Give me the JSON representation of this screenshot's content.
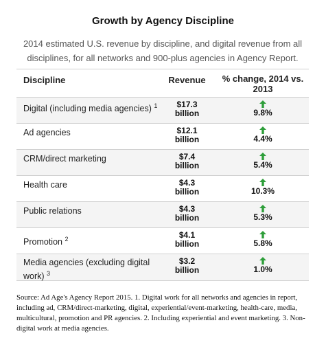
{
  "title": "Growth by Agency Discipline",
  "subtitle": "2014 estimated U.S. revenue by discipline, and digital revenue from all disciplines, for all networks and 900-plus agencies in Agency Report.",
  "columns": {
    "discipline": "Discipline",
    "revenue": "Revenue",
    "change": "% change, 2014 vs. 2013"
  },
  "rows": [
    {
      "discipline": "Digital (including media agencies)",
      "footnote": "1",
      "revenue_value": "$17.3",
      "revenue_unit": "billion",
      "change": "9.8%",
      "direction": "up"
    },
    {
      "discipline": "Ad agencies",
      "footnote": "",
      "revenue_value": "$12.1",
      "revenue_unit": "billion",
      "change": "4.4%",
      "direction": "up"
    },
    {
      "discipline": "CRM/direct marketing",
      "footnote": "",
      "revenue_value": "$7.4",
      "revenue_unit": "billion",
      "change": "5.4%",
      "direction": "up"
    },
    {
      "discipline": "Health care",
      "footnote": "",
      "revenue_value": "$4.3",
      "revenue_unit": "billion",
      "change": "10.3%",
      "direction": "up"
    },
    {
      "discipline": "Public relations",
      "footnote": "",
      "revenue_value": "$4.3",
      "revenue_unit": "billion",
      "change": "5.3%",
      "direction": "up"
    },
    {
      "discipline": "Promotion",
      "footnote": "2",
      "revenue_value": "$4.1",
      "revenue_unit": "billion",
      "change": "5.8%",
      "direction": "up"
    },
    {
      "discipline": "Media agencies (excluding digital work)",
      "footnote": "3",
      "revenue_value": "$3.2",
      "revenue_unit": "billion",
      "change": "1.0%",
      "direction": "up"
    }
  ],
  "source": "Source: Ad Age's Agency Report 2015. 1. Digital work for all networks and agencies in report, including ad, CRM/direct-marketing, digital, experiential/event-marketing, health-care, media, multicultural, promotion and PR agencies. 2. Including experiential and event marketing. 3. Non-digital work at media agencies.",
  "colors": {
    "up_arrow": "#2e9e3a",
    "stripe": "#f4f4f4",
    "rule": "#cfcfcf"
  },
  "icons": {
    "up": "up-arrow-icon"
  }
}
